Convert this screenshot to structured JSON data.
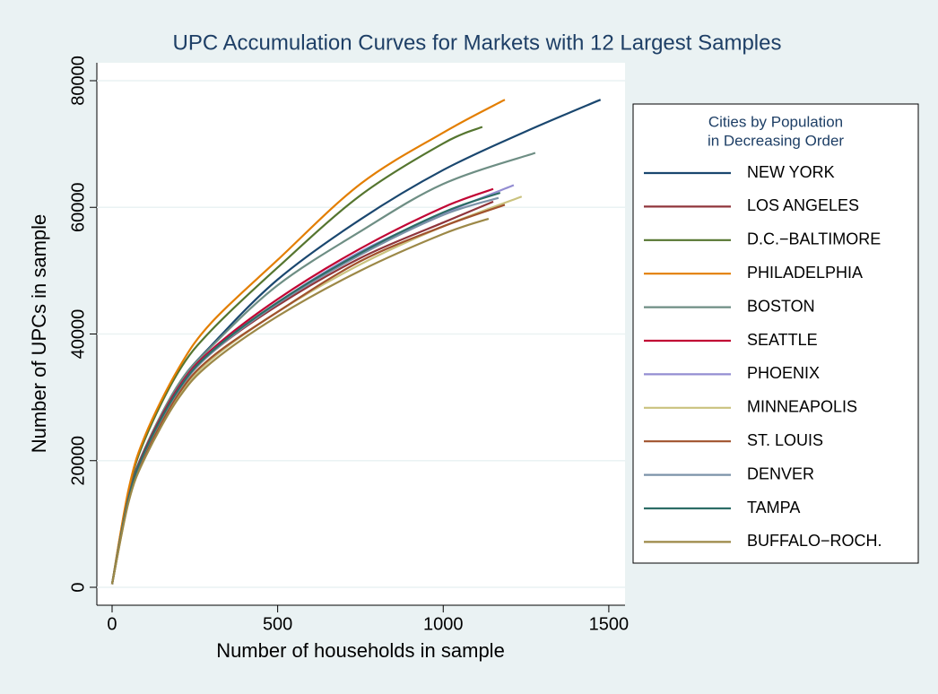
{
  "chart_data": {
    "type": "line",
    "title": "UPC Accumulation Curves for Markets with 12 Largest Samples",
    "x_label": "Number of households in sample",
    "y_label": "Number of UPCs in sample",
    "legend_title": [
      "Cities by Population",
      "in Decreasing Order"
    ],
    "legend_position": "right",
    "grid": true,
    "xlim": [
      -46,
      1549
    ],
    "ylim": [
      -2830,
      82830
    ],
    "xticks": [
      0,
      500,
      1000,
      1500
    ],
    "yticks": [
      0,
      20000,
      40000,
      60000,
      80000
    ],
    "series": [
      {
        "name": "NEW YORK",
        "color": "#1a476f",
        "x": [
          0,
          50,
          100,
          200,
          300,
          500,
          750,
          1000,
          1250,
          1475
        ],
        "values": [
          500,
          14500,
          22000,
          32000,
          38200,
          48600,
          58100,
          65900,
          72000,
          77000
        ]
      },
      {
        "name": "LOS ANGELES",
        "color": "#90353b",
        "x": [
          0,
          50,
          100,
          200,
          300,
          500,
          750,
          1000,
          1151
        ],
        "values": [
          500,
          14000,
          21500,
          31000,
          37000,
          44500,
          52000,
          57600,
          60900
        ]
      },
      {
        "name": "D.C.−BALTIMORE",
        "color": "#55752f",
        "x": [
          0,
          50,
          100,
          200,
          300,
          500,
          750,
          1000,
          1118
        ],
        "values": [
          500,
          15200,
          23500,
          34000,
          40600,
          50500,
          61900,
          70100,
          72700
        ]
      },
      {
        "name": "PHILADELPHIA",
        "color": "#e37e00",
        "x": [
          0,
          50,
          100,
          200,
          300,
          500,
          750,
          1000,
          1186
        ],
        "values": [
          500,
          15500,
          24000,
          34500,
          41800,
          51700,
          63700,
          71800,
          77000
        ]
      },
      {
        "name": "BOSTON",
        "color": "#6e8e84",
        "x": [
          0,
          50,
          100,
          200,
          300,
          500,
          750,
          1000,
          1278
        ],
        "values": [
          500,
          14300,
          22000,
          32000,
          38000,
          47700,
          56200,
          63700,
          68600
        ]
      },
      {
        "name": "SEATTLE",
        "color": "#c10534",
        "x": [
          0,
          50,
          100,
          200,
          300,
          500,
          750,
          1000,
          1151
        ],
        "values": [
          500,
          14200,
          21800,
          31500,
          37500,
          45500,
          53500,
          60000,
          62900
        ]
      },
      {
        "name": "PHOENIX",
        "color": "#938dd2",
        "x": [
          0,
          50,
          100,
          200,
          300,
          500,
          750,
          1000,
          1213
        ],
        "values": [
          500,
          14000,
          21500,
          31200,
          37200,
          45000,
          53000,
          59000,
          63500
        ]
      },
      {
        "name": "MINNEAPOLIS",
        "color": "#cac27e",
        "x": [
          0,
          50,
          100,
          200,
          300,
          500,
          750,
          1000,
          1237
        ],
        "values": [
          500,
          13600,
          20800,
          30200,
          36000,
          43500,
          51000,
          57000,
          61700
        ]
      },
      {
        "name": "ST. LOUIS",
        "color": "#a0522d",
        "x": [
          0,
          50,
          100,
          200,
          300,
          500,
          750,
          1000,
          1186
        ],
        "values": [
          500,
          13800,
          21000,
          30500,
          36300,
          43500,
          51500,
          57000,
          60400
        ]
      },
      {
        "name": "DENVER",
        "color": "#7b92a8",
        "x": [
          0,
          50,
          100,
          200,
          300,
          500,
          750,
          1000,
          1167
        ],
        "values": [
          500,
          14000,
          21500,
          31000,
          37000,
          44800,
          52500,
          58800,
          61500
        ]
      },
      {
        "name": "TAMPA",
        "color": "#2d6d66",
        "x": [
          0,
          50,
          100,
          200,
          300,
          500,
          750,
          1000,
          1172
        ],
        "values": [
          500,
          14100,
          21600,
          31200,
          37200,
          45000,
          52800,
          59200,
          62300
        ]
      },
      {
        "name": "BUFFALO−ROCH.",
        "color": "#9c8847",
        "x": [
          0,
          50,
          100,
          200,
          300,
          500,
          750,
          1000,
          1137
        ],
        "values": [
          500,
          13500,
          20500,
          29800,
          35500,
          42800,
          50000,
          55800,
          58200
        ]
      }
    ]
  }
}
